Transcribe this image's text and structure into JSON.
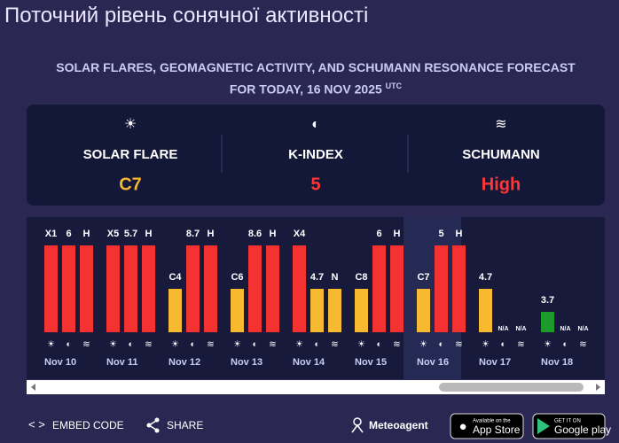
{
  "title": "Поточний рівень сонячної активності",
  "subtitle": "SOLAR FLARES, GEOMAGNETIC ACTIVITY, AND SCHUMANN RESONANCE FORECAST FOR TODAY, 16 NOV 2025",
  "subtitle_sup": "UTC",
  "summary": [
    {
      "label": "SOLAR FLARE",
      "value": "C7",
      "color": "#f5b731"
    },
    {
      "label": "K-INDEX",
      "value": "5",
      "color": "#ff3636"
    },
    {
      "label": "SCHUMANN",
      "value": "High",
      "color": "#ff3636"
    }
  ],
  "level_colors": {
    "high": "#f43232",
    "moderate": "#f6b930",
    "low": "#1c9a2c"
  },
  "current_day": 6,
  "days": [
    {
      "date": "Nov 10",
      "bars": [
        {
          "label": "X1",
          "level": "high"
        },
        {
          "label": "6",
          "level": "high"
        },
        {
          "label": "H",
          "level": "high"
        }
      ]
    },
    {
      "date": "Nov 11",
      "bars": [
        {
          "label": "X5",
          "level": "high"
        },
        {
          "label": "5.7",
          "level": "high"
        },
        {
          "label": "H",
          "level": "high"
        }
      ]
    },
    {
      "date": "Nov 12",
      "bars": [
        {
          "label": "C4",
          "level": "moderate"
        },
        {
          "label": "8.7",
          "level": "high"
        },
        {
          "label": "H",
          "level": "high"
        }
      ]
    },
    {
      "date": "Nov 13",
      "bars": [
        {
          "label": "C6",
          "level": "moderate"
        },
        {
          "label": "8.6",
          "level": "high"
        },
        {
          "label": "H",
          "level": "high"
        }
      ]
    },
    {
      "date": "Nov 14",
      "bars": [
        {
          "label": "X4",
          "level": "high"
        },
        {
          "label": "4.7",
          "level": "moderate"
        },
        {
          "label": "N",
          "level": "moderate"
        }
      ]
    },
    {
      "date": "Nov 15",
      "bars": [
        {
          "label": "C8",
          "level": "moderate"
        },
        {
          "label": "6",
          "level": "high"
        },
        {
          "label": "H",
          "level": "high"
        }
      ]
    },
    {
      "date": "Nov 16",
      "bars": [
        {
          "label": "C7",
          "level": "moderate"
        },
        {
          "label": "5",
          "level": "high"
        },
        {
          "label": "H",
          "level": "high"
        }
      ]
    },
    {
      "date": "Nov 17",
      "bars": [
        {
          "label": "4.7",
          "level": "moderate"
        },
        {
          "label": "N/A",
          "level": null
        },
        {
          "label": "N/A",
          "level": null
        }
      ]
    },
    {
      "date": "Nov 18",
      "bars": [
        {
          "label": "3.7",
          "level": "low"
        },
        {
          "label": "N/A",
          "level": null
        },
        {
          "label": "N/A",
          "level": null
        }
      ]
    }
  ],
  "footer": {
    "embed": "EMBED CODE",
    "share": "SHARE",
    "brand": "Meteoagent",
    "app_store": {
      "small": "Available on the",
      "big": "App Store"
    },
    "google_play": {
      "small": "GET IT ON",
      "big": "Google play"
    }
  }
}
